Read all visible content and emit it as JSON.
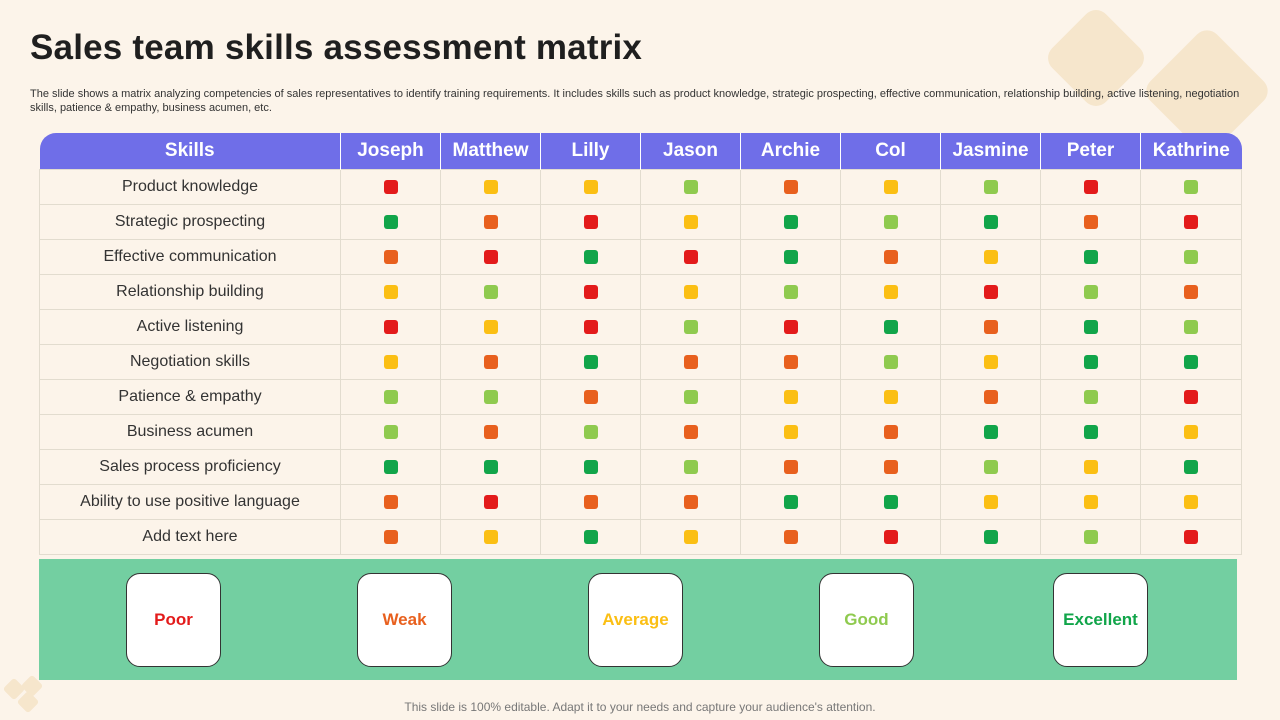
{
  "title": "Sales team skills assessment matrix",
  "description": "The slide shows a matrix analyzing competencies of sales representatives to identify training requirements. It includes skills such as product knowledge, strategic prospecting, effective communication, relationship building, active listening, negotiation skills, patience & empathy, business acumen, etc.",
  "colors": {
    "poor": "#e31b1b",
    "weak": "#e8601e",
    "average": "#fbbf14",
    "good": "#8fca4f",
    "excellent": "#11a54a",
    "header": "#6f6ee8",
    "legend_panel": "#73cfa1"
  },
  "table": {
    "header_label": "Skills",
    "people": [
      "Joseph",
      "Matthew",
      "Lilly",
      "Jason",
      "Archie",
      "Col",
      "Jasmine",
      "Peter",
      "Kathrine"
    ],
    "rows": [
      {
        "skill": "Product knowledge",
        "ratings": [
          "poor",
          "average",
          "average",
          "good",
          "weak",
          "average",
          "good",
          "poor",
          "good"
        ]
      },
      {
        "skill": "Strategic prospecting",
        "ratings": [
          "excellent",
          "weak",
          "poor",
          "average",
          "excellent",
          "good",
          "excellent",
          "weak",
          "poor"
        ]
      },
      {
        "skill": "Effective communication",
        "ratings": [
          "weak",
          "poor",
          "excellent",
          "poor",
          "excellent",
          "weak",
          "average",
          "excellent",
          "good"
        ]
      },
      {
        "skill": "Relationship building",
        "ratings": [
          "average",
          "good",
          "poor",
          "average",
          "good",
          "average",
          "poor",
          "good",
          "weak"
        ]
      },
      {
        "skill": "Active listening",
        "ratings": [
          "poor",
          "average",
          "poor",
          "good",
          "poor",
          "excellent",
          "weak",
          "excellent",
          "good"
        ]
      },
      {
        "skill": "Negotiation skills",
        "ratings": [
          "average",
          "weak",
          "excellent",
          "weak",
          "weak",
          "good",
          "average",
          "excellent",
          "excellent"
        ]
      },
      {
        "skill": "Patience & empathy",
        "ratings": [
          "good",
          "good",
          "weak",
          "good",
          "average",
          "average",
          "weak",
          "good",
          "poor"
        ]
      },
      {
        "skill": "Business acumen",
        "ratings": [
          "good",
          "weak",
          "good",
          "weak",
          "average",
          "weak",
          "excellent",
          "excellent",
          "average"
        ]
      },
      {
        "skill": "Sales process proficiency",
        "ratings": [
          "excellent",
          "excellent",
          "excellent",
          "good",
          "weak",
          "weak",
          "good",
          "average",
          "excellent"
        ]
      },
      {
        "skill": "Ability to use positive language",
        "ratings": [
          "weak",
          "poor",
          "weak",
          "weak",
          "excellent",
          "excellent",
          "average",
          "average",
          "average"
        ]
      },
      {
        "skill": "Add text here",
        "ratings": [
          "weak",
          "average",
          "excellent",
          "average",
          "weak",
          "poor",
          "excellent",
          "good",
          "poor"
        ]
      }
    ]
  },
  "legend": [
    {
      "key": "poor",
      "label": "Poor"
    },
    {
      "key": "weak",
      "label": "Weak"
    },
    {
      "key": "average",
      "label": "Average"
    },
    {
      "key": "good",
      "label": "Good"
    },
    {
      "key": "excellent",
      "label": "Excellent"
    }
  ],
  "footer": "This slide is 100% editable. Adapt it to your needs and capture your audience's attention."
}
